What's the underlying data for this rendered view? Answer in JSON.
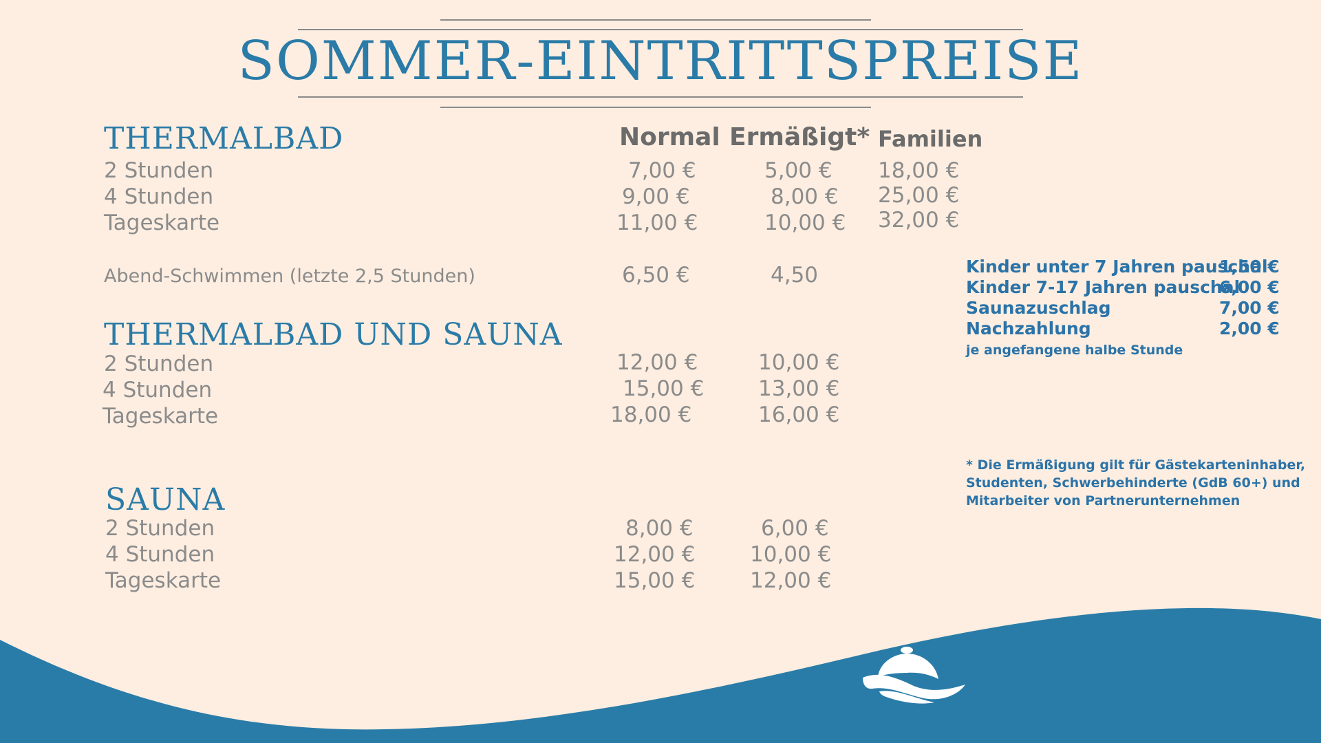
{
  "title": "SOMMER-EINTRITTSPREISE",
  "columns": {
    "normal": "Normal",
    "reduced": "Ermäßigt*",
    "family": "Familien"
  },
  "thermalbad": {
    "heading": "THERMALBAD",
    "rows": [
      {
        "label": "2 Stunden",
        "normal": "7,00 €",
        "reduced": "5,00 €",
        "family": "18,00 €"
      },
      {
        "label": "4 Stunden",
        "normal": "9,00 €",
        "reduced": "8,00 €",
        "family": "25,00 €"
      },
      {
        "label": "Tageskarte",
        "normal": "11,00 €",
        "reduced": "10,00 €",
        "family": "32,00 €"
      }
    ],
    "evening": {
      "label": "Abend-Schwimmen (letzte 2,5 Stunden)",
      "normal": "6,50 €",
      "reduced": "4,50"
    }
  },
  "thermalbad_sauna": {
    "heading": "THERMALBAD UND SAUNA",
    "rows": [
      {
        "label": "2 Stunden",
        "normal": "12,00 €",
        "reduced": "10,00 €"
      },
      {
        "label": "4 Stunden",
        "normal": "15,00 €",
        "reduced": "13,00 €"
      },
      {
        "label": "Tageskarte",
        "normal": "18,00 €",
        "reduced": "16,00 €"
      }
    ]
  },
  "sauna": {
    "heading": "SAUNA",
    "rows": [
      {
        "label": "2 Stunden",
        "normal": "8,00 €",
        "reduced": "6,00 €"
      },
      {
        "label": "4 Stunden",
        "normal": "12,00 €",
        "reduced": "10,00 €"
      },
      {
        "label": "Tageskarte",
        "normal": "15,00 €",
        "reduced": "12,00 €"
      }
    ]
  },
  "extras": [
    {
      "label": "Kinder unter 7 Jahren pauschal",
      "price": "1,50 €"
    },
    {
      "label": "Kinder 7-17 Jahren pauschal",
      "price": "6,00 €"
    },
    {
      "label": "Saunazuschlag",
      "price": "7,00 €"
    },
    {
      "label": "Nachzahlung",
      "price": "2,00 €"
    }
  ],
  "extras_note": "je angefangene halbe Stunde",
  "footnote": [
    "* Die Ermäßigung gilt für Gästekarteninhaber,",
    "Studenten, Schwerbehinderte (GdB 60+) und",
    "Mitarbeiter von Partnerunternehmen"
  ],
  "colors": {
    "background": "#fdeee1",
    "accent": "#2a7ba7",
    "wave": "#2a7ca8",
    "text": "#8b8b8b"
  },
  "logo_icon": "spa-logo-icon"
}
